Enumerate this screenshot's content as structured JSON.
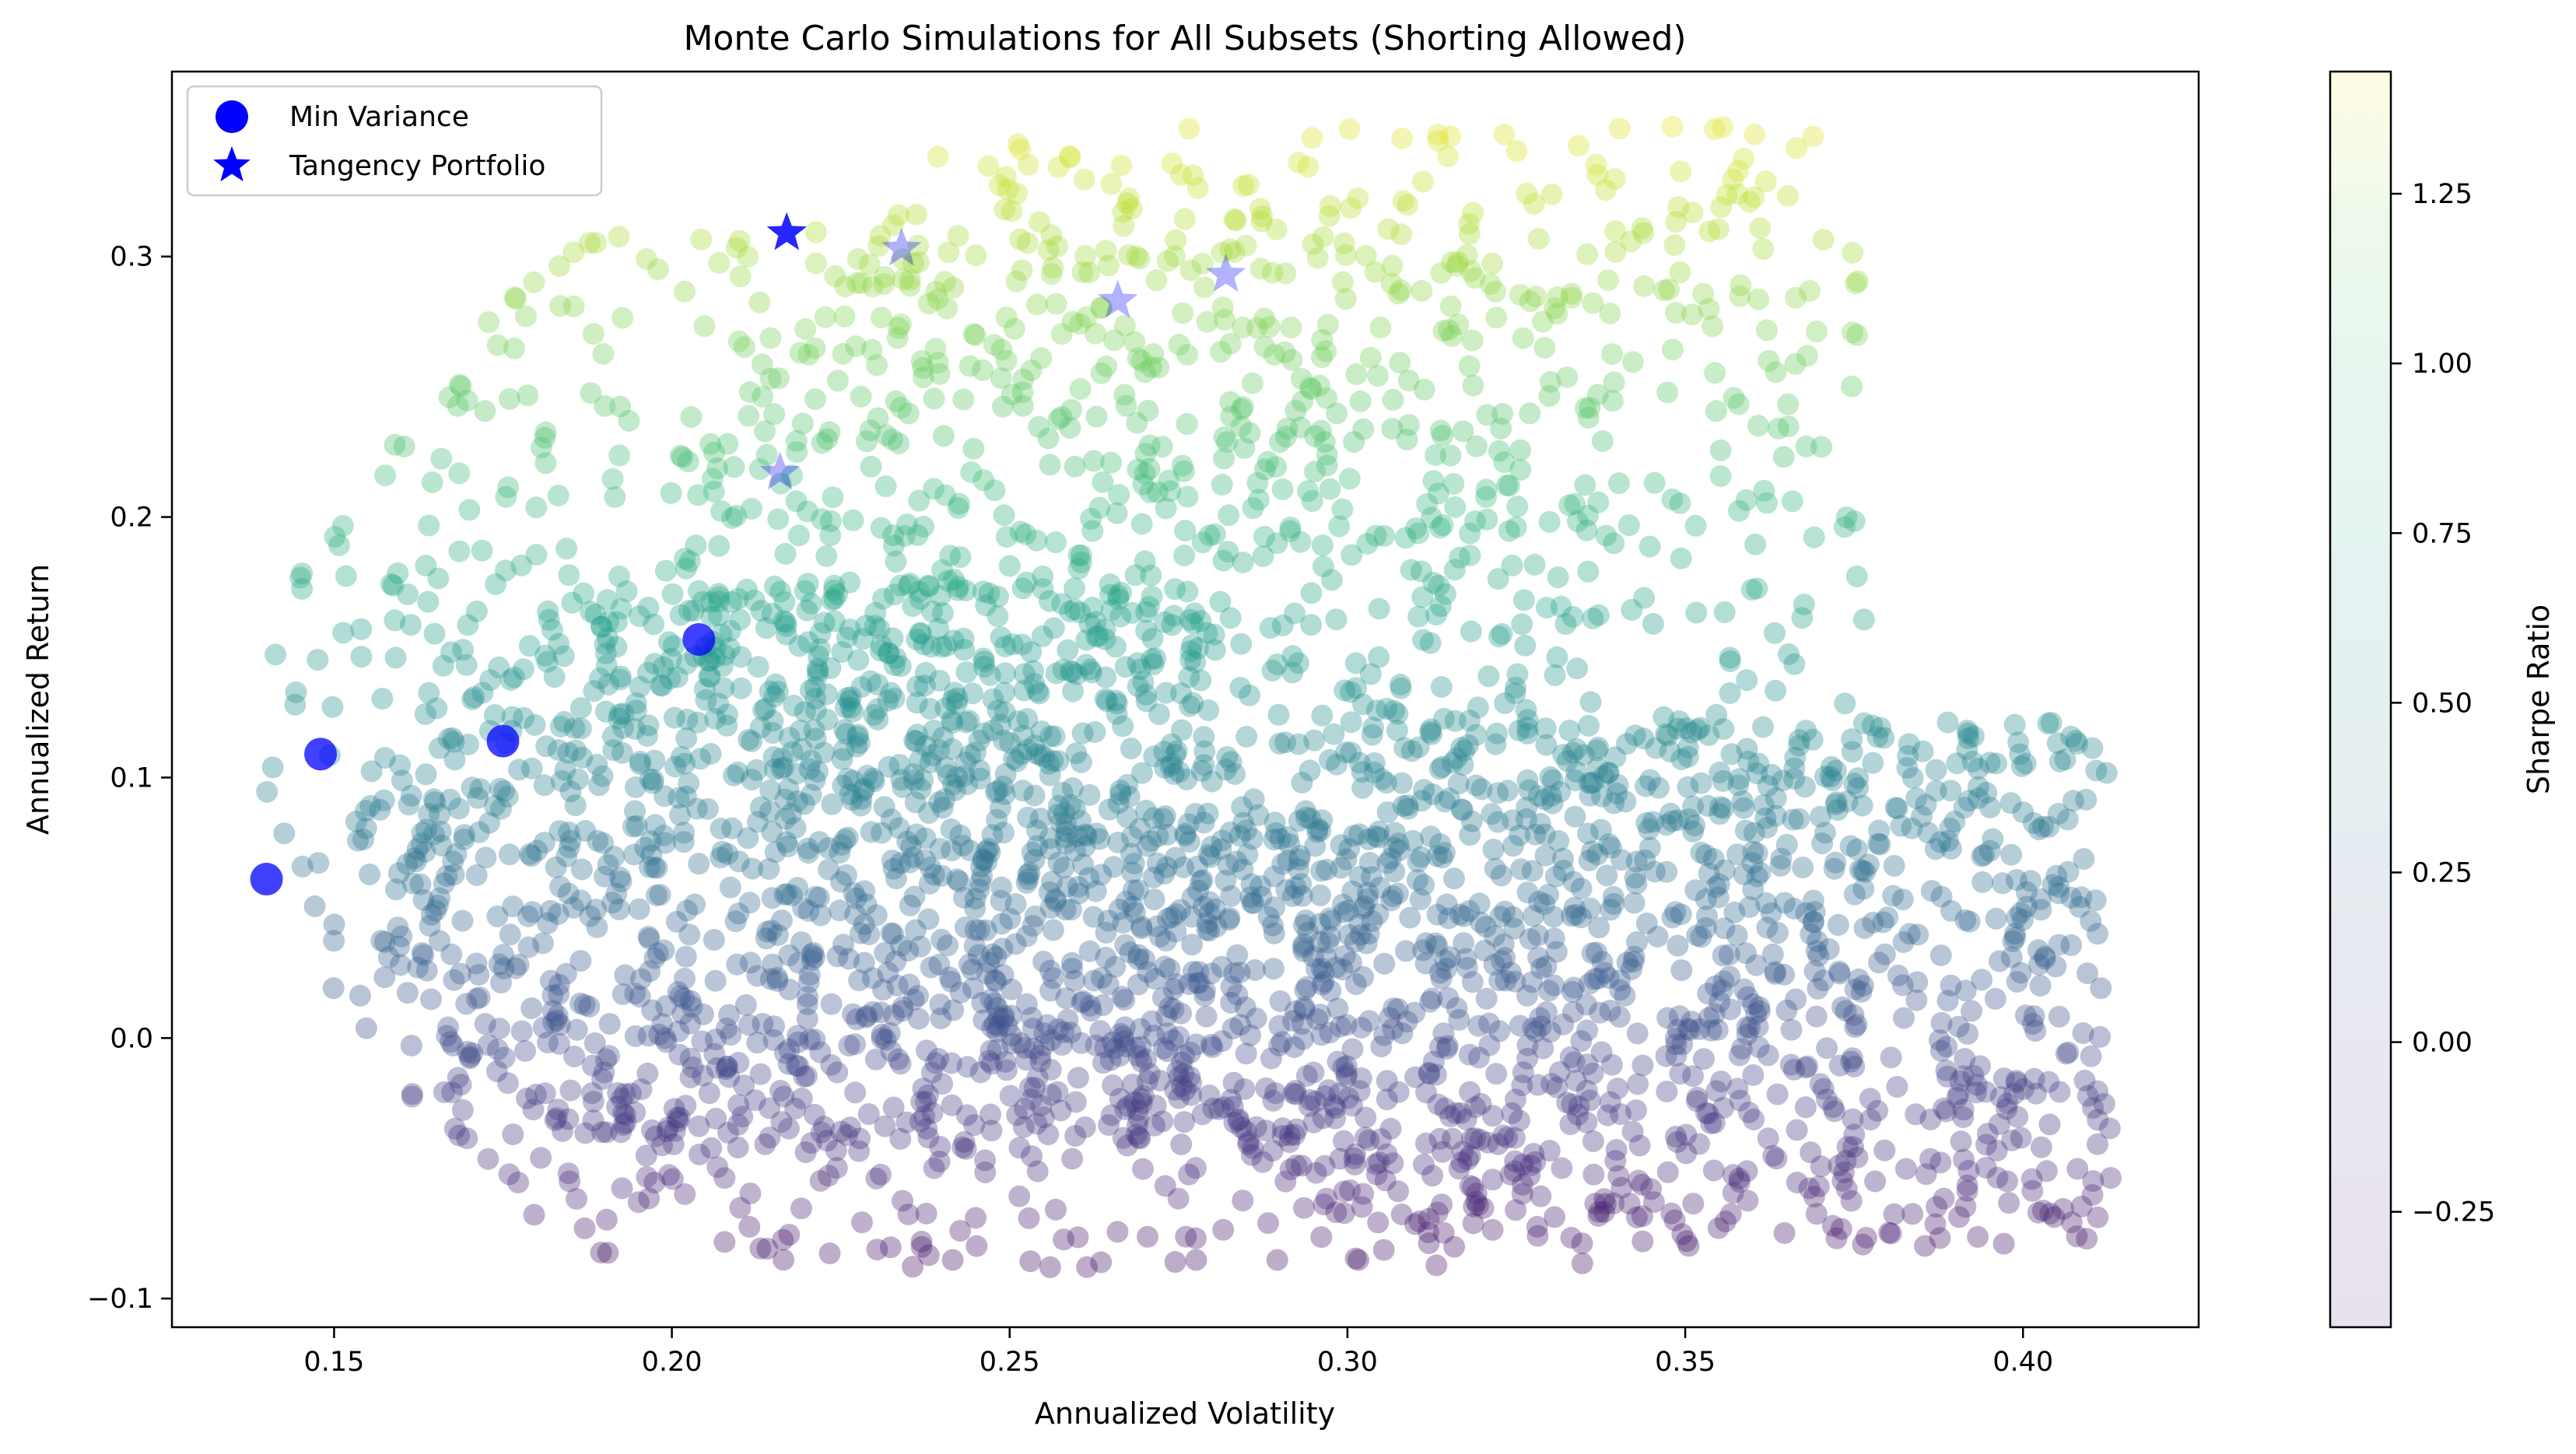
{
  "chart_data": {
    "type": "scatter",
    "title": "Monte Carlo Simulations for All Subsets (Shorting Allowed)",
    "xlabel": "Annualized Volatility",
    "ylabel": "Annualized Return",
    "xlim": [
      0.126,
      0.426
    ],
    "ylim": [
      -0.111,
      0.371
    ],
    "x_ticks": [
      0.15,
      0.2,
      0.25,
      0.3,
      0.35,
      0.4
    ],
    "x_tick_labels": [
      "0.15",
      "0.20",
      "0.25",
      "0.30",
      "0.35",
      "0.40"
    ],
    "y_ticks": [
      -0.1,
      0.0,
      0.1,
      0.2,
      0.3
    ],
    "y_tick_labels": [
      "−0.1",
      "0.0",
      "0.1",
      "0.2",
      "0.3"
    ],
    "grid": false,
    "legend_position": "top-left",
    "colormap": "viridis",
    "scatter_alpha": 0.1,
    "legend": [
      {
        "label": "Min Variance",
        "marker": "circle",
        "color": "#0000ff"
      },
      {
        "label": "Tangency Portfolio",
        "marker": "star",
        "color": "#0000ff"
      }
    ],
    "colorbar": {
      "label": "Sharpe Ratio",
      "range": [
        -0.42,
        1.43
      ],
      "ticks": [
        -0.25,
        0.0,
        0.25,
        0.5,
        0.75,
        1.0,
        1.25
      ],
      "tick_labels": [
        "−0.25",
        "0.00",
        "0.25",
        "0.50",
        "0.75",
        "1.00",
        "1.25"
      ]
    },
    "simulation_regions": [
      {
        "vol_min": 0.139,
        "vol_max": 0.338,
        "ret_min": -0.088,
        "ret_max": 0.31
      },
      {
        "vol_min": 0.154,
        "vol_max": 0.28,
        "ret_min": -0.04,
        "ret_max": 0.175
      },
      {
        "vol_min": 0.2,
        "vol_max": 0.377,
        "ret_min": -0.005,
        "ret_max": 0.35
      },
      {
        "vol_min": 0.27,
        "vol_max": 0.413,
        "ret_min": -0.08,
        "ret_max": 0.122
      }
    ],
    "min_variance_points": [
      {
        "x": 0.14,
        "y": 0.061
      },
      {
        "x": 0.148,
        "y": 0.109
      },
      {
        "x": 0.175,
        "y": 0.114
      },
      {
        "x": 0.204,
        "y": 0.153
      }
    ],
    "tangency_points": [
      {
        "x": 0.217,
        "y": 0.309
      },
      {
        "x": 0.234,
        "y": 0.303
      },
      {
        "x": 0.266,
        "y": 0.283
      },
      {
        "x": 0.282,
        "y": 0.293
      },
      {
        "x": 0.216,
        "y": 0.217
      }
    ]
  }
}
